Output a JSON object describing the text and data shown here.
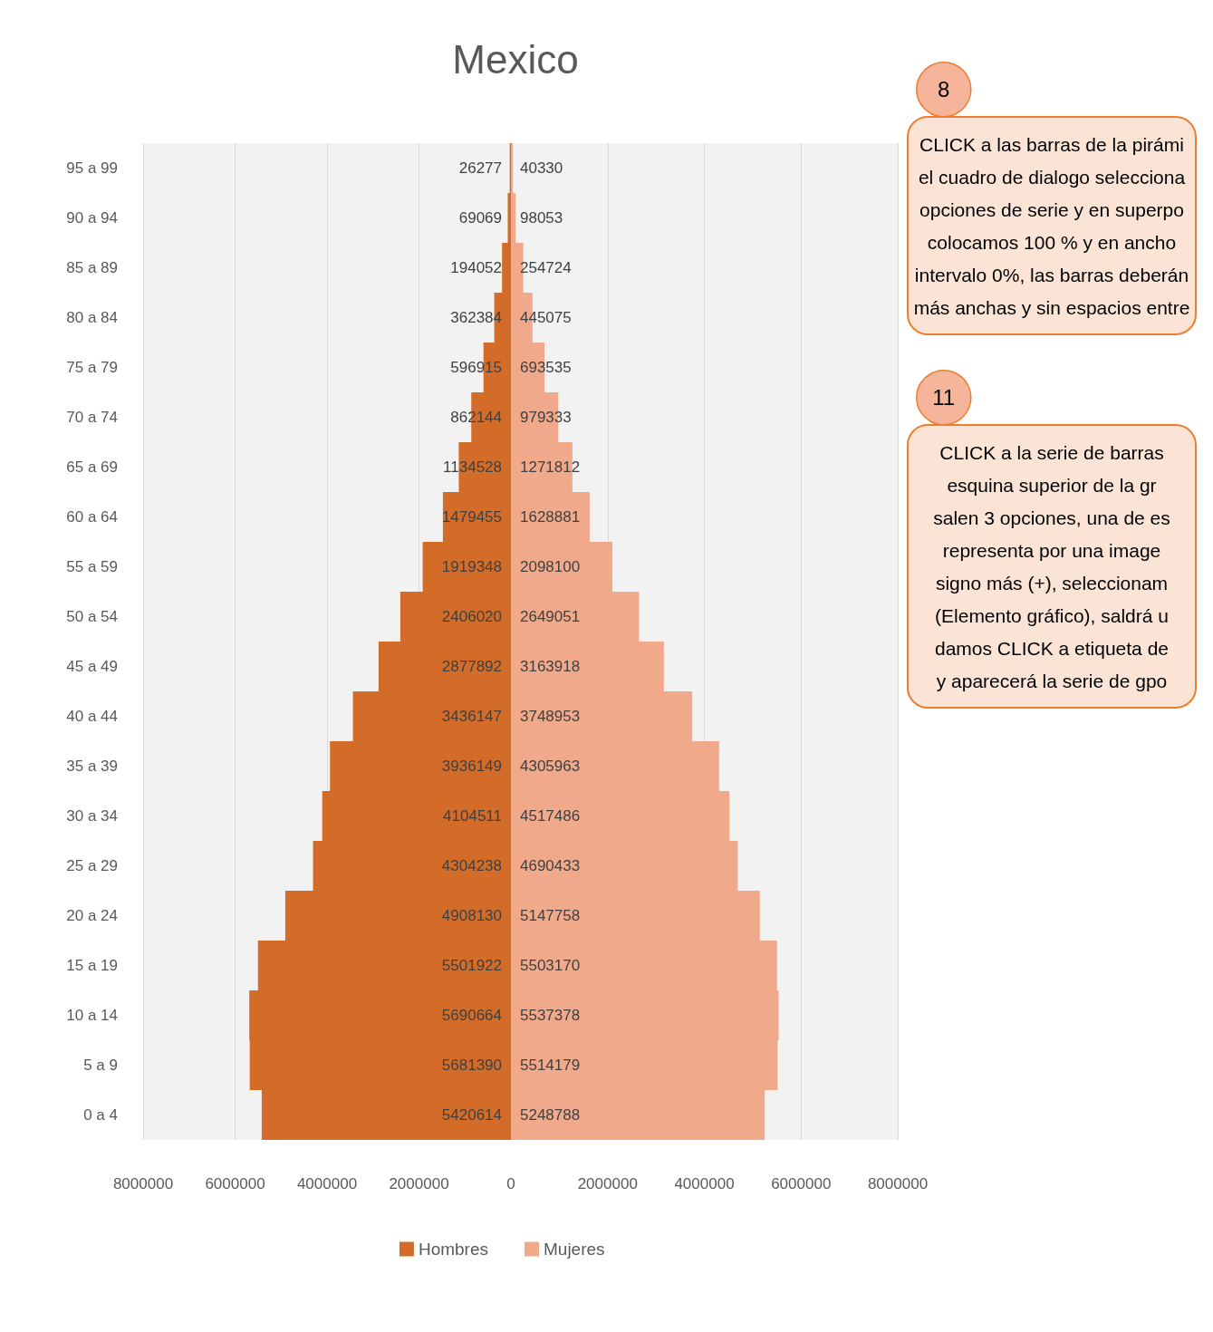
{
  "chart_data": [
    {
      "type": "bar",
      "orientation": "horizontal",
      "categories": [
        "95 a 99",
        "90 a 94",
        "85 a 89",
        "80 a 84",
        "75 a 79",
        "70 a 74",
        "65 a 69",
        "60 a 64",
        "55 a 59",
        "50 a 54",
        "45 a 49",
        "40 a 44",
        "35 a 39",
        "30 a 34",
        "25 a 29",
        "20 a 24",
        "15 a 19",
        "10 a 14",
        "5 a 9",
        "0 a 4"
      ],
      "series": [
        {
          "name": "Hombres",
          "color": "#d26c28",
          "values": [
            26277,
            69069,
            194052,
            362384,
            596915,
            862144,
            1134528,
            1479455,
            1919348,
            2406020,
            2877892,
            3436147,
            3936149,
            4104511,
            4304238,
            4908130,
            5501922,
            5690664,
            5681390,
            5420614
          ]
        }
      ],
      "xlim": [
        8000000,
        0
      ],
      "xticks": [
        8000000,
        6000000,
        4000000,
        2000000
      ],
      "grid": "x",
      "legend": "bottom",
      "data_labels": true
    },
    {
      "type": "bar",
      "orientation": "horizontal",
      "title": "Mexico",
      "categories": [
        null,
        null,
        null,
        null,
        null,
        null,
        null,
        null,
        null,
        null,
        null,
        null,
        null,
        null,
        null,
        null,
        null,
        null,
        null,
        null
      ],
      "series": [
        {
          "name": "Mujeres",
          "color": "#f0a98a",
          "values": [
            40330,
            98053,
            254724,
            445075,
            693535,
            979333,
            1271812,
            1628881,
            2098100,
            2649051,
            3163918,
            3748953,
            4305963,
            4517486,
            4690433,
            5147758,
            5503170,
            5537378,
            5514179,
            5248788
          ]
        }
      ],
      "xlim": [
        0,
        8000000
      ],
      "xticks": [
        0,
        2000000,
        4000000,
        6000000,
        8000000
      ],
      "grid": "x",
      "legend": "bottom",
      "data_labels": true,
      "tick_labels": "x",
      "annotations": [
        "8",
        "CLICK a las barras de la pirámi\nel cuadro de dialogo selecciona\nopciones de serie y en superpo\ncolocamos 100 % y en ancho\nintervalo 0%, las barras deberán\nmás anchas y sin espacios entre",
        "11",
        "CLICK a la serie de barras\nesquina superior de la gr\nsalen 3 opciones, una de es\nrepresenta por una image\nsigno más (+), seleccionam\n(Elemento gráfico), saldrá u\ndamos CLICK a etiqueta de\ny aparecerá la serie de gpo"
      ]
    }
  ]
}
